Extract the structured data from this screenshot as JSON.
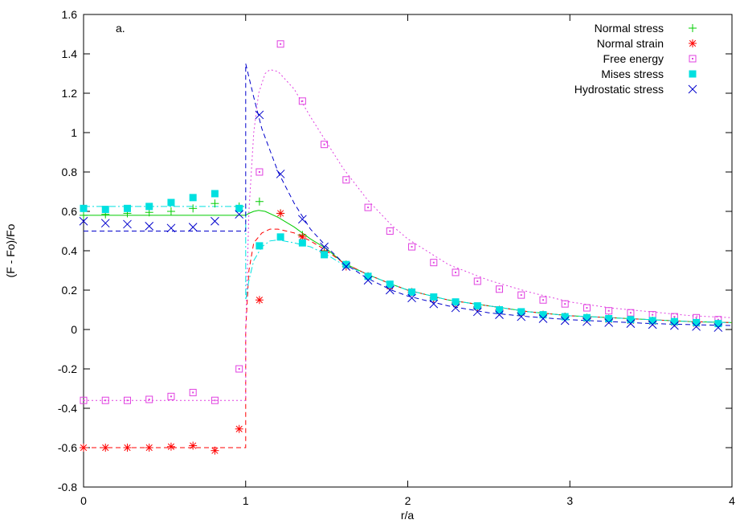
{
  "chart_data": {
    "type": "scatter",
    "panel_label": "a.",
    "xlabel": "r/a",
    "ylabel": "(F - Fo)/Fo",
    "xlim": [
      0,
      4
    ],
    "ylim": [
      -0.8,
      1.6
    ],
    "x_ticks": [
      "0",
      "1",
      "2",
      "3",
      "4"
    ],
    "y_ticks": [
      "-0.8",
      "-0.6",
      "-0.4",
      "-0.2",
      "0",
      "0.2",
      "0.4",
      "0.6",
      "0.8",
      "1",
      "1.2",
      "1.4",
      "1.6"
    ],
    "grid": false,
    "legend_position": "top-right",
    "series": [
      {
        "name": "Normal stress",
        "marker": "plus",
        "color": "#00cc00",
        "dash": "solid",
        "points": [
          [
            0,
            0.58
          ],
          [
            0.135,
            0.585
          ],
          [
            0.27,
            0.59
          ],
          [
            0.405,
            0.595
          ],
          [
            0.54,
            0.6
          ],
          [
            0.675,
            0.615
          ],
          [
            0.81,
            0.64
          ],
          [
            0.96,
            0.625
          ],
          [
            1.085,
            0.65
          ],
          [
            1.215,
            0.59
          ],
          [
            1.35,
            0.48
          ],
          [
            1.485,
            0.4
          ],
          [
            1.62,
            0.33
          ],
          [
            1.755,
            0.27
          ],
          [
            1.89,
            0.22
          ],
          [
            2.025,
            0.19
          ],
          [
            2.16,
            0.16
          ],
          [
            2.295,
            0.135
          ],
          [
            2.43,
            0.115
          ],
          [
            2.565,
            0.1
          ],
          [
            2.7,
            0.085
          ],
          [
            2.835,
            0.075
          ],
          [
            2.97,
            0.065
          ],
          [
            3.105,
            0.06
          ],
          [
            3.24,
            0.055
          ],
          [
            3.375,
            0.05
          ],
          [
            3.51,
            0.045
          ],
          [
            3.645,
            0.04
          ],
          [
            3.78,
            0.035
          ],
          [
            3.915,
            0.03
          ]
        ],
        "curve": [
          [
            0,
            0.58
          ],
          [
            0.99,
            0.58
          ],
          [
            1.0,
            0.58
          ],
          [
            1.02,
            0.59
          ],
          [
            1.05,
            0.6
          ],
          [
            1.08,
            0.605
          ],
          [
            1.12,
            0.6
          ],
          [
            1.2,
            0.57
          ],
          [
            1.3,
            0.52
          ],
          [
            1.4,
            0.46
          ],
          [
            1.5,
            0.41
          ],
          [
            1.6,
            0.34
          ],
          [
            1.75,
            0.28
          ],
          [
            1.9,
            0.23
          ],
          [
            2.0,
            0.2
          ],
          [
            2.25,
            0.15
          ],
          [
            2.5,
            0.12
          ],
          [
            2.75,
            0.09
          ],
          [
            3.0,
            0.07
          ],
          [
            3.25,
            0.06
          ],
          [
            3.5,
            0.05
          ],
          [
            3.75,
            0.04
          ],
          [
            4.0,
            0.035
          ]
        ]
      },
      {
        "name": "Normal strain",
        "marker": "asterisk",
        "color": "#ff0000",
        "dash": "dashed",
        "points": [
          [
            0,
            -0.6
          ],
          [
            0.135,
            -0.6
          ],
          [
            0.27,
            -0.6
          ],
          [
            0.405,
            -0.6
          ],
          [
            0.54,
            -0.595
          ],
          [
            0.675,
            -0.59
          ],
          [
            0.81,
            -0.615
          ],
          [
            0.96,
            -0.505
          ],
          [
            1.085,
            0.15
          ],
          [
            1.215,
            0.59
          ],
          [
            1.35,
            0.47
          ],
          [
            1.485,
            0.39
          ],
          [
            1.62,
            0.32
          ],
          [
            1.755,
            0.27
          ],
          [
            1.89,
            0.22
          ],
          [
            2.025,
            0.19
          ],
          [
            2.16,
            0.16
          ],
          [
            2.295,
            0.135
          ],
          [
            2.43,
            0.115
          ],
          [
            2.565,
            0.1
          ],
          [
            2.7,
            0.085
          ],
          [
            2.835,
            0.075
          ],
          [
            2.97,
            0.065
          ],
          [
            3.105,
            0.055
          ],
          [
            3.24,
            0.05
          ],
          [
            3.375,
            0.045
          ],
          [
            3.51,
            0.04
          ],
          [
            3.645,
            0.035
          ],
          [
            3.78,
            0.03
          ],
          [
            3.915,
            0.03
          ]
        ],
        "curve": [
          [
            0,
            -0.6
          ],
          [
            0.99,
            -0.6
          ],
          [
            1.0,
            -0.6
          ],
          [
            1.0,
            0.0
          ],
          [
            1.02,
            0.3
          ],
          [
            1.05,
            0.44
          ],
          [
            1.1,
            0.49
          ],
          [
            1.15,
            0.51
          ],
          [
            1.2,
            0.51
          ],
          [
            1.3,
            0.49
          ],
          [
            1.4,
            0.45
          ],
          [
            1.5,
            0.4
          ],
          [
            1.6,
            0.34
          ],
          [
            1.75,
            0.28
          ],
          [
            1.9,
            0.23
          ],
          [
            2.0,
            0.2
          ],
          [
            2.25,
            0.15
          ],
          [
            2.5,
            0.12
          ],
          [
            2.75,
            0.09
          ],
          [
            3.0,
            0.07
          ],
          [
            3.25,
            0.06
          ],
          [
            3.5,
            0.05
          ],
          [
            3.75,
            0.04
          ],
          [
            4.0,
            0.035
          ]
        ]
      },
      {
        "name": "Free energy",
        "marker": "square-dot",
        "color": "#e040e0",
        "dash": "dotted",
        "points": [
          [
            0,
            -0.36
          ],
          [
            0.135,
            -0.36
          ],
          [
            0.27,
            -0.36
          ],
          [
            0.405,
            -0.355
          ],
          [
            0.54,
            -0.34
          ],
          [
            0.675,
            -0.32
          ],
          [
            0.81,
            -0.36
          ],
          [
            0.96,
            -0.2
          ],
          [
            1.085,
            0.8
          ],
          [
            1.215,
            1.45
          ],
          [
            1.35,
            1.16
          ],
          [
            1.485,
            0.94
          ],
          [
            1.62,
            0.76
          ],
          [
            1.755,
            0.62
          ],
          [
            1.89,
            0.5
          ],
          [
            2.025,
            0.42
          ],
          [
            2.16,
            0.34
          ],
          [
            2.295,
            0.29
          ],
          [
            2.43,
            0.245
          ],
          [
            2.565,
            0.205
          ],
          [
            2.7,
            0.175
          ],
          [
            2.835,
            0.15
          ],
          [
            2.97,
            0.13
          ],
          [
            3.105,
            0.11
          ],
          [
            3.24,
            0.095
          ],
          [
            3.375,
            0.085
          ],
          [
            3.51,
            0.075
          ],
          [
            3.645,
            0.065
          ],
          [
            3.78,
            0.06
          ],
          [
            3.915,
            0.05
          ]
        ],
        "curve": [
          [
            0,
            -0.36
          ],
          [
            0.99,
            -0.36
          ],
          [
            1.0,
            -0.36
          ],
          [
            1.0,
            0.0
          ],
          [
            1.02,
            0.6
          ],
          [
            1.05,
            1.0
          ],
          [
            1.08,
            1.2
          ],
          [
            1.12,
            1.3
          ],
          [
            1.15,
            1.32
          ],
          [
            1.2,
            1.31
          ],
          [
            1.3,
            1.22
          ],
          [
            1.4,
            1.08
          ],
          [
            1.5,
            0.95
          ],
          [
            1.6,
            0.82
          ],
          [
            1.75,
            0.66
          ],
          [
            1.9,
            0.53
          ],
          [
            2.0,
            0.46
          ],
          [
            2.25,
            0.33
          ],
          [
            2.5,
            0.25
          ],
          [
            2.75,
            0.19
          ],
          [
            3.0,
            0.14
          ],
          [
            3.25,
            0.11
          ],
          [
            3.5,
            0.09
          ],
          [
            3.75,
            0.07
          ],
          [
            4.0,
            0.06
          ]
        ]
      },
      {
        "name": "Mises stress",
        "marker": "filled-square",
        "color": "#00e0e0",
        "dash": "dash-dot",
        "points": [
          [
            0,
            0.615
          ],
          [
            0.135,
            0.61
          ],
          [
            0.27,
            0.615
          ],
          [
            0.405,
            0.625
          ],
          [
            0.54,
            0.645
          ],
          [
            0.675,
            0.67
          ],
          [
            0.81,
            0.69
          ],
          [
            0.96,
            0.615
          ],
          [
            1.085,
            0.425
          ],
          [
            1.215,
            0.47
          ],
          [
            1.35,
            0.44
          ],
          [
            1.485,
            0.38
          ],
          [
            1.62,
            0.33
          ],
          [
            1.755,
            0.27
          ],
          [
            1.89,
            0.23
          ],
          [
            2.025,
            0.19
          ],
          [
            2.16,
            0.165
          ],
          [
            2.295,
            0.14
          ],
          [
            2.43,
            0.12
          ],
          [
            2.565,
            0.1
          ],
          [
            2.7,
            0.09
          ],
          [
            2.835,
            0.075
          ],
          [
            2.97,
            0.065
          ],
          [
            3.105,
            0.06
          ],
          [
            3.24,
            0.055
          ],
          [
            3.375,
            0.05
          ],
          [
            3.51,
            0.045
          ],
          [
            3.645,
            0.04
          ],
          [
            3.78,
            0.035
          ],
          [
            3.915,
            0.03
          ]
        ],
        "curve": [
          [
            0,
            0.625
          ],
          [
            0.99,
            0.625
          ],
          [
            1.0,
            0.625
          ],
          [
            1.0,
            0.15
          ],
          [
            1.02,
            0.25
          ],
          [
            1.05,
            0.35
          ],
          [
            1.1,
            0.42
          ],
          [
            1.15,
            0.45
          ],
          [
            1.2,
            0.455
          ],
          [
            1.3,
            0.44
          ],
          [
            1.4,
            0.42
          ],
          [
            1.5,
            0.38
          ],
          [
            1.6,
            0.33
          ],
          [
            1.75,
            0.28
          ],
          [
            1.9,
            0.23
          ],
          [
            2.0,
            0.2
          ],
          [
            2.25,
            0.15
          ],
          [
            2.5,
            0.12
          ],
          [
            2.75,
            0.09
          ],
          [
            3.0,
            0.07
          ],
          [
            3.25,
            0.06
          ],
          [
            3.5,
            0.05
          ],
          [
            3.75,
            0.04
          ],
          [
            4.0,
            0.035
          ]
        ]
      },
      {
        "name": "Hydrostatic stress",
        "marker": "cross",
        "color": "#0000cc",
        "dash": "dashed",
        "points": [
          [
            0,
            0.55
          ],
          [
            0.135,
            0.54
          ],
          [
            0.27,
            0.535
          ],
          [
            0.405,
            0.525
          ],
          [
            0.54,
            0.515
          ],
          [
            0.675,
            0.52
          ],
          [
            0.81,
            0.55
          ],
          [
            0.96,
            0.585
          ],
          [
            1.085,
            1.09
          ],
          [
            1.215,
            0.79
          ],
          [
            1.35,
            0.56
          ],
          [
            1.485,
            0.42
          ],
          [
            1.62,
            0.32
          ],
          [
            1.755,
            0.25
          ],
          [
            1.89,
            0.2
          ],
          [
            2.025,
            0.16
          ],
          [
            2.16,
            0.13
          ],
          [
            2.295,
            0.11
          ],
          [
            2.43,
            0.09
          ],
          [
            2.565,
            0.075
          ],
          [
            2.7,
            0.065
          ],
          [
            2.835,
            0.055
          ],
          [
            2.97,
            0.045
          ],
          [
            3.105,
            0.04
          ],
          [
            3.24,
            0.035
          ],
          [
            3.375,
            0.03
          ],
          [
            3.51,
            0.025
          ],
          [
            3.645,
            0.02
          ],
          [
            3.78,
            0.015
          ],
          [
            3.915,
            0.01
          ]
        ],
        "curve": [
          [
            0,
            0.5
          ],
          [
            0.99,
            0.5
          ],
          [
            1.0,
            0.5
          ],
          [
            1.0,
            1.35
          ],
          [
            1.05,
            1.18
          ],
          [
            1.1,
            1.02
          ],
          [
            1.2,
            0.8
          ],
          [
            1.3,
            0.64
          ],
          [
            1.4,
            0.51
          ],
          [
            1.5,
            0.42
          ],
          [
            1.6,
            0.34
          ],
          [
            1.75,
            0.26
          ],
          [
            1.9,
            0.2
          ],
          [
            2.0,
            0.17
          ],
          [
            2.25,
            0.12
          ],
          [
            2.5,
            0.085
          ],
          [
            2.75,
            0.065
          ],
          [
            3.0,
            0.05
          ],
          [
            3.25,
            0.04
          ],
          [
            3.5,
            0.03
          ],
          [
            3.75,
            0.025
          ],
          [
            4.0,
            0.02
          ]
        ]
      }
    ]
  }
}
